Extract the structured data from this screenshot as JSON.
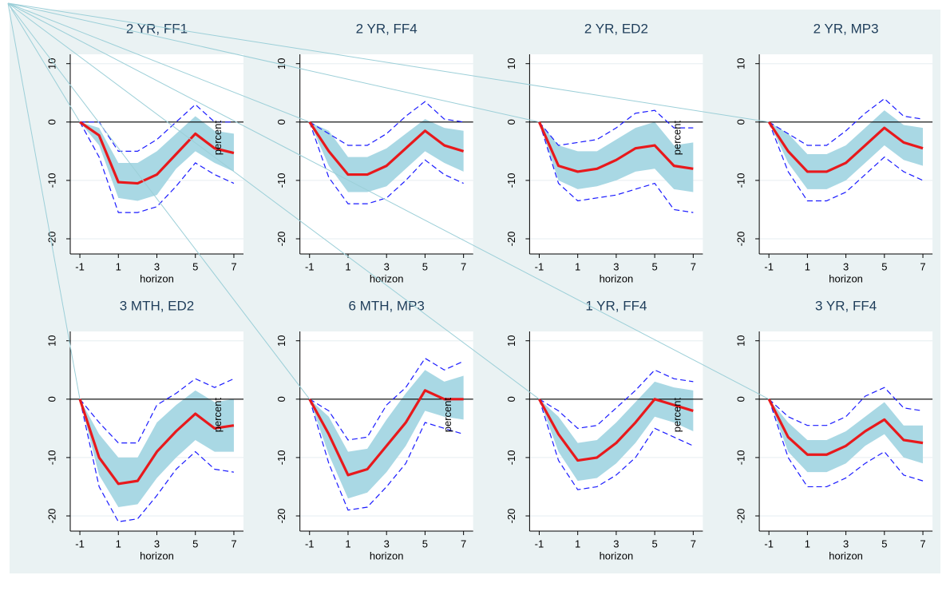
{
  "chart_data": [
    {
      "type": "line",
      "title": "2 YR, FF1",
      "xlabel": "horizon",
      "ylabel": "percent",
      "x": [
        -1,
        0,
        1,
        2,
        3,
        4,
        5,
        6,
        7
      ],
      "xlim": [
        -1.5,
        7.5
      ],
      "xticks": [
        -1,
        1,
        3,
        5,
        7
      ],
      "ylim": [
        -22.6,
        11.6
      ],
      "yticks": [
        10,
        0,
        -10,
        -20
      ],
      "refline": 0,
      "grid": true,
      "series": [
        {
          "kind": "band",
          "color": "#a9d8e4",
          "upper": [
            0,
            -1,
            -7,
            -7,
            -5,
            -2,
            1,
            -1.5,
            -2
          ],
          "lower": [
            0,
            -4,
            -13,
            -13.5,
            -12.5,
            -8,
            -5,
            -7,
            -8.5
          ]
        },
        {
          "kind": "ci",
          "color": "#1a1aff",
          "values": [
            0,
            0,
            -5,
            -5,
            -3,
            0,
            3,
            0,
            0
          ]
        },
        {
          "kind": "ci",
          "color": "#1a1aff",
          "values": [
            0,
            -6,
            -15.5,
            -15.5,
            -14.5,
            -11,
            -7,
            -9,
            -10.5
          ]
        },
        {
          "kind": "estimate",
          "color": "#e8191c",
          "values": [
            0,
            -2.3,
            -10.3,
            -10.5,
            -9,
            -5.5,
            -2,
            -4.5,
            -5.3
          ]
        }
      ]
    },
    {
      "type": "line",
      "title": "2 YR, FF4",
      "xlabel": "horizon",
      "x": [
        -1,
        0,
        1,
        2,
        3,
        4,
        5,
        6,
        7
      ],
      "xlim": [
        -1.5,
        7.5
      ],
      "xticks": [
        -1,
        1,
        3,
        5,
        7
      ],
      "ylim": [
        -22.6,
        11.6
      ],
      "yticks": [
        10,
        0,
        -10,
        -20
      ],
      "refline": 0,
      "grid": true,
      "series": [
        {
          "kind": "band",
          "color": "#a9d8e4",
          "upper": [
            0,
            -1.5,
            -6,
            -6,
            -4.5,
            -2,
            0.5,
            -1,
            -1.5
          ],
          "lower": [
            0,
            -7.5,
            -12,
            -12,
            -11,
            -8,
            -5,
            -7,
            -8.5
          ]
        },
        {
          "kind": "ci",
          "color": "#1a1aff",
          "values": [
            0,
            -2,
            -4,
            -4,
            -2,
            1,
            3.5,
            0.5,
            0
          ]
        },
        {
          "kind": "ci",
          "color": "#1a1aff",
          "values": [
            0,
            -9.5,
            -14,
            -14,
            -13,
            -10,
            -6.5,
            -9,
            -10.5
          ]
        },
        {
          "kind": "estimate",
          "color": "#e8191c",
          "values": [
            0,
            -5,
            -9,
            -9,
            -7.5,
            -4.5,
            -1.5,
            -4,
            -5
          ]
        }
      ]
    },
    {
      "type": "line",
      "title": "2 YR, ED2",
      "xlabel": "horizon",
      "ylabel": "percent",
      "x": [
        -1,
        0,
        1,
        2,
        3,
        4,
        5,
        6,
        7
      ],
      "xlim": [
        -1.5,
        7.5
      ],
      "xticks": [
        -1,
        1,
        3,
        5,
        7
      ],
      "ylim": [
        -22.6,
        11.6
      ],
      "yticks": [
        10,
        0,
        -10,
        -20
      ],
      "refline": 0,
      "grid": true,
      "series": [
        {
          "kind": "band",
          "color": "#a9d8e4",
          "upper": [
            0,
            -4,
            -5,
            -5,
            -3,
            -1,
            0,
            -4,
            -3.5
          ],
          "lower": [
            0,
            -10,
            -11.5,
            -11,
            -10,
            -8.5,
            -8,
            -11.5,
            -12
          ]
        },
        {
          "kind": "ci",
          "color": "#1a1aff",
          "values": [
            0,
            -4,
            -3.5,
            -3,
            -1,
            1.5,
            2,
            -1,
            -1
          ]
        },
        {
          "kind": "ci",
          "color": "#1a1aff",
          "values": [
            0,
            -10.5,
            -13.5,
            -13,
            -12.5,
            -11.5,
            -10.5,
            -15,
            -15.5
          ]
        },
        {
          "kind": "estimate",
          "color": "#e8191c",
          "values": [
            0,
            -7.5,
            -8.5,
            -8,
            -6.5,
            -4.5,
            -4,
            -7.5,
            -8
          ]
        }
      ]
    },
    {
      "type": "line",
      "title": "2 YR, MP3",
      "xlabel": "horizon",
      "x": [
        -1,
        0,
        1,
        2,
        3,
        4,
        5,
        6,
        7
      ],
      "xlim": [
        -1.5,
        7.5
      ],
      "xticks": [
        -1,
        1,
        3,
        5,
        7
      ],
      "ylim": [
        -22.6,
        11.6
      ],
      "yticks": [
        10,
        0,
        -10,
        -20
      ],
      "refline": 0,
      "grid": true,
      "series": [
        {
          "kind": "band",
          "color": "#a9d8e4",
          "upper": [
            0,
            -2,
            -5.5,
            -5.5,
            -4,
            -1,
            2,
            -0.5,
            -1
          ],
          "lower": [
            0,
            -7,
            -11.5,
            -11.5,
            -10,
            -7,
            -4,
            -6.5,
            -7.5
          ]
        },
        {
          "kind": "ci",
          "color": "#1a1aff",
          "values": [
            0,
            -2,
            -4,
            -4,
            -1.5,
            1.5,
            4,
            1,
            0.5
          ]
        },
        {
          "kind": "ci",
          "color": "#1a1aff",
          "values": [
            0,
            -8.5,
            -13.5,
            -13.5,
            -12,
            -9,
            -6,
            -8.5,
            -10
          ]
        },
        {
          "kind": "estimate",
          "color": "#e8191c",
          "values": [
            0,
            -5,
            -8.5,
            -8.5,
            -7,
            -4,
            -1,
            -3.5,
            -4.5
          ]
        }
      ]
    },
    {
      "type": "line",
      "title": "3 MTH, ED2",
      "xlabel": "horizon",
      "ylabel": "percent",
      "x": [
        -1,
        0,
        1,
        2,
        3,
        4,
        5,
        6,
        7
      ],
      "xlim": [
        -1.5,
        7.5
      ],
      "xticks": [
        -1,
        1,
        3,
        5,
        7
      ],
      "ylim": [
        -22.6,
        11.6
      ],
      "yticks": [
        10,
        0,
        -10,
        -20
      ],
      "refline": 0,
      "grid": true,
      "series": [
        {
          "kind": "band",
          "color": "#a9d8e4",
          "upper": [
            0,
            -6,
            -10,
            -10,
            -4,
            -1,
            1.5,
            -0.5,
            0
          ],
          "lower": [
            0,
            -13,
            -18.5,
            -18,
            -13.5,
            -10,
            -7,
            -9,
            -9
          ]
        },
        {
          "kind": "ci",
          "color": "#1a1aff",
          "values": [
            0,
            -4,
            -7.5,
            -7.5,
            -1,
            1,
            3.5,
            2,
            3.5
          ]
        },
        {
          "kind": "ci",
          "color": "#1a1aff",
          "values": [
            0,
            -15,
            -21,
            -20.5,
            -16.5,
            -12,
            -9,
            -12,
            -12.5
          ]
        },
        {
          "kind": "estimate",
          "color": "#e8191c",
          "values": [
            0,
            -10,
            -14.5,
            -14,
            -9,
            -5.5,
            -2.5,
            -5,
            -4.5
          ]
        }
      ]
    },
    {
      "type": "line",
      "title": "6 MTH, MP3",
      "xlabel": "horizon",
      "ylabel": "percent",
      "x": [
        -1,
        0,
        1,
        2,
        3,
        4,
        5,
        6,
        7
      ],
      "xlim": [
        -1.5,
        7.5
      ],
      "xticks": [
        -1,
        1,
        3,
        5,
        7
      ],
      "ylim": [
        -22.6,
        11.6
      ],
      "yticks": [
        10,
        0,
        -10,
        -20
      ],
      "refline": 0,
      "grid": true,
      "series": [
        {
          "kind": "band",
          "color": "#a9d8e4",
          "upper": [
            0,
            -3,
            -9,
            -8.5,
            -3.5,
            1,
            5,
            3,
            4
          ],
          "lower": [
            0,
            -9.5,
            -17,
            -16,
            -12.5,
            -8,
            -2,
            -3,
            -3.5
          ]
        },
        {
          "kind": "ci",
          "color": "#1a1aff",
          "values": [
            0,
            -2,
            -7,
            -6.5,
            -1,
            2,
            7,
            5,
            6.5
          ]
        },
        {
          "kind": "ci",
          "color": "#1a1aff",
          "values": [
            0,
            -11,
            -19,
            -18.5,
            -15,
            -11,
            -4,
            -5,
            -6
          ]
        },
        {
          "kind": "estimate",
          "color": "#e8191c",
          "values": [
            0,
            -6,
            -13,
            -12,
            -8,
            -4,
            1.5,
            0,
            0
          ]
        }
      ]
    },
    {
      "type": "line",
      "title": "1 YR, FF4",
      "xlabel": "horizon",
      "ylabel": "percent",
      "x": [
        -1,
        0,
        1,
        2,
        3,
        4,
        5,
        6,
        7
      ],
      "xlim": [
        -1.5,
        7.5
      ],
      "xticks": [
        -1,
        1,
        3,
        5,
        7
      ],
      "ylim": [
        -22.6,
        11.6
      ],
      "yticks": [
        10,
        0,
        -10,
        -20
      ],
      "refline": 0,
      "grid": true,
      "series": [
        {
          "kind": "band",
          "color": "#a9d8e4",
          "upper": [
            0,
            -3,
            -7.5,
            -7,
            -4,
            -0.5,
            3,
            2,
            1.5
          ],
          "lower": [
            0,
            -9,
            -14,
            -13.5,
            -11,
            -7.5,
            -3,
            -4,
            -5.5
          ]
        },
        {
          "kind": "ci",
          "color": "#1a1aff",
          "values": [
            0,
            -2,
            -5,
            -4.5,
            -1.5,
            1.5,
            5,
            3.5,
            3
          ]
        },
        {
          "kind": "ci",
          "color": "#1a1aff",
          "values": [
            0,
            -10.5,
            -15.5,
            -15,
            -13,
            -10,
            -5,
            -6.5,
            -8
          ]
        },
        {
          "kind": "estimate",
          "color": "#e8191c",
          "values": [
            0,
            -6,
            -10.5,
            -10,
            -7.5,
            -4,
            0,
            -1,
            -2
          ]
        }
      ]
    },
    {
      "type": "line",
      "title": "3 YR, FF4",
      "xlabel": "horizon",
      "x": [
        -1,
        0,
        1,
        2,
        3,
        4,
        5,
        6,
        7
      ],
      "xlim": [
        -1.5,
        7.5
      ],
      "xticks": [
        -1,
        1,
        3,
        5,
        7
      ],
      "ylim": [
        -22.6,
        11.6
      ],
      "yticks": [
        10,
        0,
        -10,
        -20
      ],
      "refline": 0,
      "grid": true,
      "series": [
        {
          "kind": "band",
          "color": "#a9d8e4",
          "upper": [
            0,
            -4,
            -7,
            -7,
            -5.5,
            -3,
            -0.5,
            -4.5,
            -4.5
          ],
          "lower": [
            0,
            -9,
            -12.5,
            -12.5,
            -11,
            -8,
            -6,
            -10,
            -11
          ]
        },
        {
          "kind": "ci",
          "color": "#1a1aff",
          "values": [
            0,
            -3,
            -4.5,
            -4.5,
            -3,
            0.5,
            2,
            -1.5,
            -2
          ]
        },
        {
          "kind": "ci",
          "color": "#1a1aff",
          "values": [
            0,
            -10,
            -15,
            -15,
            -13.5,
            -11,
            -9,
            -13,
            -14
          ]
        },
        {
          "kind": "estimate",
          "color": "#e8191c",
          "values": [
            0,
            -6.5,
            -9.5,
            -9.5,
            -8,
            -5.5,
            -3.5,
            -7,
            -7.5
          ]
        }
      ]
    }
  ]
}
